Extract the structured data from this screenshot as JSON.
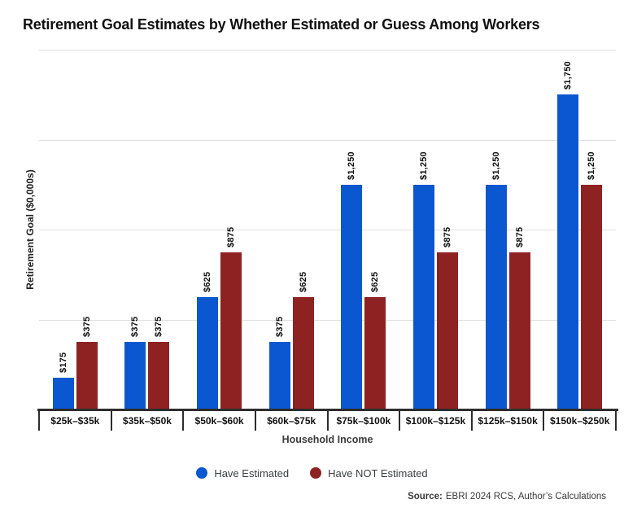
{
  "chart_data": {
    "type": "bar",
    "title": "Retirement Goal Estimates by Whether Estimated or Guess Among Workers",
    "categories": [
      "$25k–$35k",
      "$35k–$50k",
      "$50k–$60k",
      "$60k–$75k",
      "$75k–$100k",
      "$100k–$125k",
      "$125k–$150k",
      "$150k–$250k"
    ],
    "series": [
      {
        "name": "Have Estimated",
        "color": "#0B57D0",
        "values": [
          175,
          375,
          625,
          375,
          1250,
          1250,
          1250,
          1750
        ]
      },
      {
        "name": "Have NOT Estimated",
        "color": "#8E2222",
        "values": [
          375,
          375,
          875,
          625,
          625,
          875,
          875,
          1250
        ]
      }
    ],
    "xlabel": "Household Income",
    "ylabel": "Retirement Goal ($0,000s)",
    "ylim": [
      0,
      2000
    ],
    "gridline_values": [
      500,
      1000,
      1500,
      2000
    ],
    "grid": true,
    "legend_position": "bottom",
    "value_label_prefix": "$"
  },
  "source": {
    "prefix": "Source:",
    "text": "EBRI 2024 RCS, Author’s Calculations"
  }
}
